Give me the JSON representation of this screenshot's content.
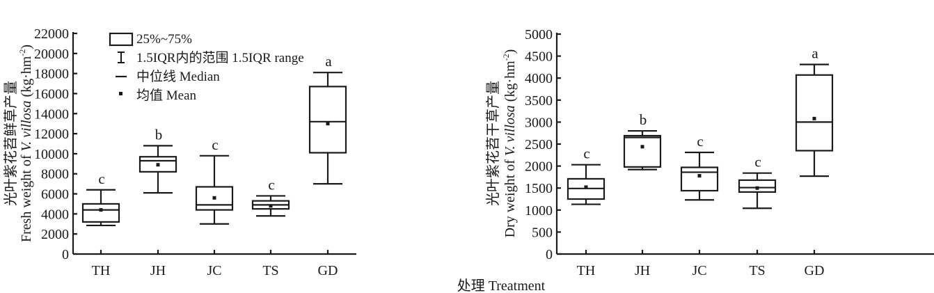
{
  "x_axis_label": "处理 Treatment",
  "legend": {
    "box": "25%~75%",
    "whisker": "1.5IQR内的范围 1.5IQR range",
    "median": "中位线 Median",
    "mean": "均值 Mean"
  },
  "chart_data": [
    {
      "type": "box",
      "ylabel_cn": "光叶紫花苕鲜草产量",
      "ylabel_en_pre": "Fresh weight of ",
      "ylabel_en_italic": "V. villosa",
      "ylabel_en_post": " (kg·hm",
      "ylabel_en_sup": "-2",
      "ylabel_en_close": ")",
      "ylim": [
        0,
        22000
      ],
      "yticks": [
        "0",
        "2000",
        "4000",
        "6000",
        "8000",
        "10000",
        "12000",
        "14000",
        "16000",
        "18000",
        "20000",
        "22000"
      ],
      "categories": [
        "TH",
        "JH",
        "JC",
        "TS",
        "GD"
      ],
      "boxes": [
        {
          "min": 2850,
          "q1": 3200,
          "median": 4400,
          "q3": 5000,
          "max": 6400,
          "mean": 4400,
          "letter": "c"
        },
        {
          "min": 6100,
          "q1": 8200,
          "median": 9300,
          "q3": 9700,
          "max": 10800,
          "mean": 8900,
          "letter": "b"
        },
        {
          "min": 3000,
          "q1": 4400,
          "median": 4900,
          "q3": 6700,
          "max": 9800,
          "mean": 5600,
          "letter": "c"
        },
        {
          "min": 3800,
          "q1": 4500,
          "median": 4900,
          "q3": 5300,
          "max": 5800,
          "mean": 4800,
          "letter": "c"
        },
        {
          "min": 7000,
          "q1": 10100,
          "median": 13200,
          "q3": 16700,
          "max": 18100,
          "mean": 13000,
          "letter": "a"
        }
      ]
    },
    {
      "type": "box",
      "ylabel_cn": "光叶紫花苕干草产量",
      "ylabel_en_pre": "Dry weight of ",
      "ylabel_en_italic": "V. villosa",
      "ylabel_en_post": " (kg·hm",
      "ylabel_en_sup": "-2",
      "ylabel_en_close": ")",
      "ylim": [
        0,
        5000
      ],
      "yticks": [
        "0",
        "500",
        "1000",
        "1500",
        "2000",
        "2500",
        "3000",
        "3500",
        "4000",
        "4500",
        "5000"
      ],
      "categories": [
        "TH",
        "JH",
        "JC",
        "TS",
        "GD"
      ],
      "boxes": [
        {
          "min": 1130,
          "q1": 1250,
          "median": 1490,
          "q3": 1710,
          "max": 2030,
          "mean": 1520,
          "letter": "c"
        },
        {
          "min": 1920,
          "q1": 1980,
          "median": 2650,
          "q3": 2690,
          "max": 2800,
          "mean": 2440,
          "letter": "b"
        },
        {
          "min": 1230,
          "q1": 1440,
          "median": 1860,
          "q3": 1970,
          "max": 2310,
          "mean": 1780,
          "letter": "c"
        },
        {
          "min": 1040,
          "q1": 1410,
          "median": 1510,
          "q3": 1680,
          "max": 1840,
          "mean": 1500,
          "letter": "c"
        },
        {
          "min": 1770,
          "q1": 2350,
          "median": 3000,
          "q3": 4070,
          "max": 4310,
          "mean": 3080,
          "letter": "a"
        }
      ]
    }
  ]
}
